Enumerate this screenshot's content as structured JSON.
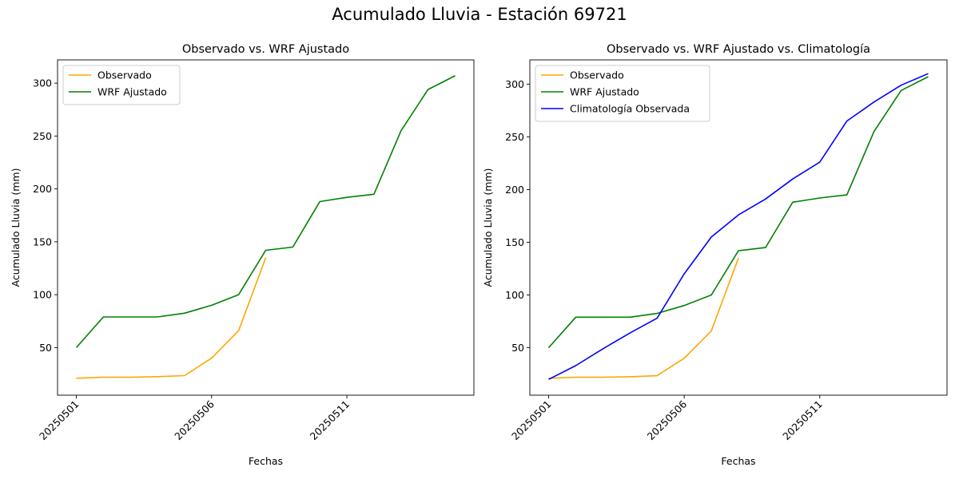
{
  "figure": {
    "suptitle": "Acumulado Lluvia - Estación 69721"
  },
  "colors": {
    "observado": "#FFA500",
    "wrf": "#008000",
    "climatologia": "#0000FF"
  },
  "chart_data": [
    {
      "type": "line",
      "title": "Observado vs. WRF Ajustado",
      "xlabel": "Fechas",
      "ylabel": "Acumulado Lluvia (mm)",
      "x": [
        "20250501",
        "20250502",
        "20250503",
        "20250504",
        "20250505",
        "20250506",
        "20250507",
        "20250508",
        "20250509",
        "20250510",
        "20250511",
        "20250512",
        "20250513",
        "20250514",
        "20250515"
      ],
      "xticks": [
        "20250501",
        "20250506",
        "20250511"
      ],
      "yticks": [
        50,
        100,
        150,
        200,
        250,
        300
      ],
      "ylim": [
        5,
        322
      ],
      "grid": false,
      "legend_position": "upper-left",
      "series": [
        {
          "name": "Observado",
          "color_key": "observado",
          "values": [
            21,
            22,
            22,
            22.5,
            23.5,
            40,
            66,
            135,
            null,
            null,
            null,
            null,
            null,
            null,
            null
          ]
        },
        {
          "name": "WRF Ajustado",
          "color_key": "wrf",
          "values": [
            50,
            79,
            79,
            79,
            82.5,
            90,
            100,
            142,
            145,
            188,
            192,
            195,
            255,
            294,
            307
          ]
        }
      ]
    },
    {
      "type": "line",
      "title": "Observado vs. WRF Ajustado vs. Climatología",
      "xlabel": "Fechas",
      "ylabel": "Acumulado Lluvia (mm)",
      "x": [
        "20250501",
        "20250502",
        "20250503",
        "20250504",
        "20250505",
        "20250506",
        "20250507",
        "20250508",
        "20250509",
        "20250510",
        "20250511",
        "20250512",
        "20250513",
        "20250514",
        "20250515"
      ],
      "xticks": [
        "20250501",
        "20250506",
        "20250511"
      ],
      "yticks": [
        50,
        100,
        150,
        200,
        250,
        300
      ],
      "ylim": [
        5,
        323
      ],
      "grid": false,
      "legend_position": "upper-left",
      "series": [
        {
          "name": "Observado",
          "color_key": "observado",
          "values": [
            21,
            22,
            22,
            22.5,
            23.5,
            40,
            66,
            135,
            null,
            null,
            null,
            null,
            null,
            null,
            null
          ]
        },
        {
          "name": "WRF Ajustado",
          "color_key": "wrf",
          "values": [
            50,
            79,
            79,
            79,
            82.5,
            90,
            100,
            142,
            145,
            188,
            192,
            195,
            255,
            294,
            307
          ]
        },
        {
          "name": "Climatología Observada",
          "color_key": "climatologia",
          "values": [
            20,
            33,
            49,
            64,
            78,
            120,
            155,
            176,
            191,
            210,
            226,
            265,
            283,
            299,
            310
          ]
        }
      ]
    }
  ]
}
